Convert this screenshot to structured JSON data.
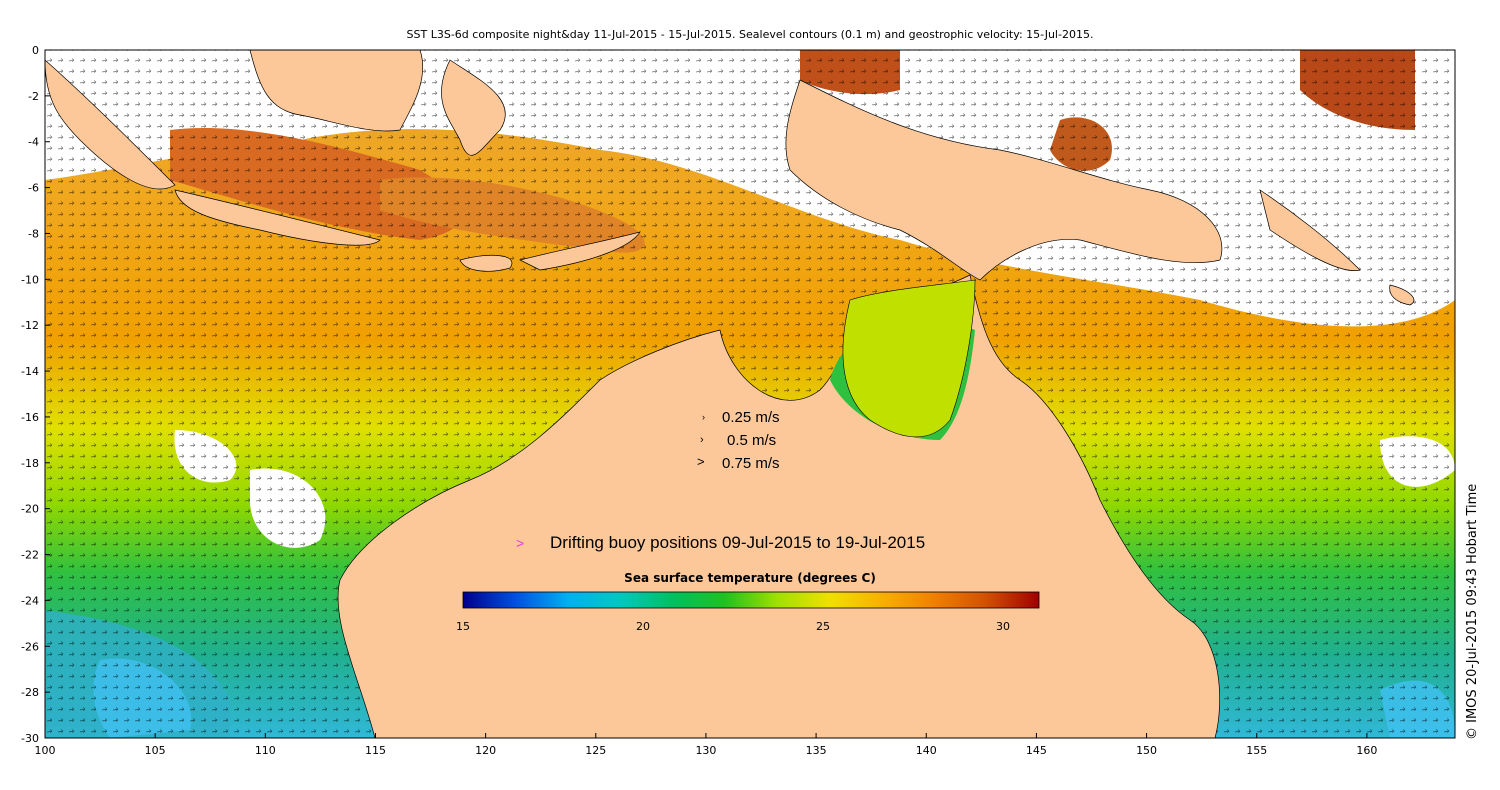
{
  "title": "SST L3S-6d composite night&day 11-Jul-2015 - 15-Jul-2015. Sealevel contours (0.1 m) and geostrophic velocity: 15-Jul-2015.",
  "credit": "© IMOS 20-Jul-2015 09:43 Hobart Time",
  "axes": {
    "x_ticks": [
      "100",
      "105",
      "110",
      "115",
      "120",
      "125",
      "130",
      "135",
      "140",
      "145",
      "150",
      "155",
      "160"
    ],
    "y_ticks": [
      "0",
      "-2",
      "-4",
      "-6",
      "-8",
      "-10",
      "-12",
      "-14",
      "-16",
      "-18",
      "-20",
      "-22",
      "-24",
      "-26",
      "-28",
      "-30"
    ],
    "lon_range": [
      100,
      164
    ],
    "lat_range": [
      -30,
      0
    ]
  },
  "velocity_legend": [
    {
      "label": "0.25 m/s"
    },
    {
      "label": "0.5 m/s"
    },
    {
      "label": "0.75 m/s"
    }
  ],
  "buoy_legend": {
    "marker": ">",
    "label": "Drifting buoy positions 09-Jul-2015 to 19-Jul-2015",
    "marker_color": "#e040e0"
  },
  "colorbar": {
    "title": "Sea surface temperature (degrees C)",
    "min": 15,
    "max": 31,
    "ticks": [
      "15",
      "20",
      "25",
      "30"
    ],
    "stops": [
      "#00008c",
      "#0050e0",
      "#00b0f0",
      "#00c8c0",
      "#00c060",
      "#20c020",
      "#a0e000",
      "#f0e000",
      "#f8b000",
      "#f08000",
      "#d05000",
      "#a00000"
    ]
  },
  "colors": {
    "land": "#fcc89a",
    "warm": "#f0a020",
    "orange": "#d87020",
    "yellow": "#e8d800",
    "green": "#30c040",
    "teal": "#20b090",
    "cyan": "#30c8e0",
    "cloud": "#ffffff"
  }
}
